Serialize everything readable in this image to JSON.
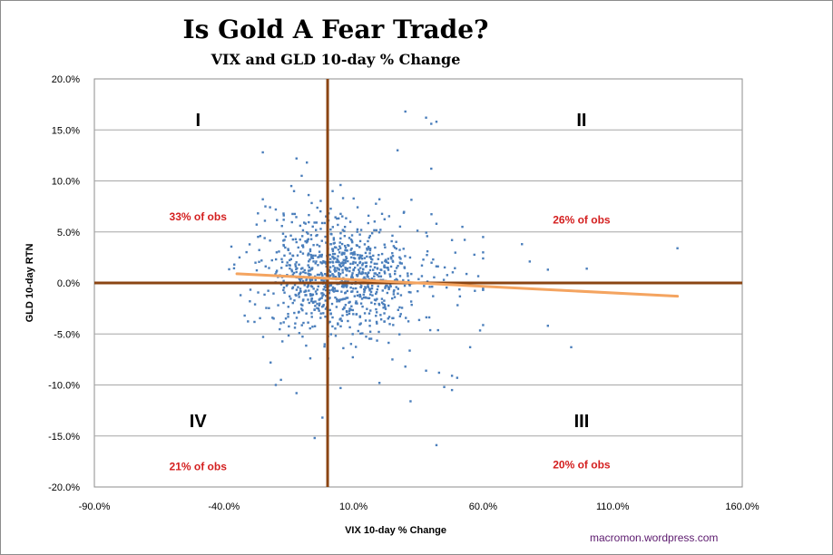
{
  "chart_data": {
    "type": "scatter",
    "title": "Is Gold A Fear Trade?",
    "subtitle": "VIX and GLD 10-day % Change",
    "xlabel": "VIX 10-day % Change",
    "ylabel": "GLD 10-day RTN",
    "xlim": [
      -90,
      160
    ],
    "ylim": [
      -20,
      20
    ],
    "x_ticks": [
      -90,
      -40,
      10,
      60,
      110,
      160
    ],
    "x_tick_labels": [
      "-90.0%",
      "-40.0%",
      "10.0%",
      "60.0%",
      "110.0%",
      "160.0%"
    ],
    "y_ticks": [
      20,
      15,
      10,
      5,
      0,
      -5,
      -10,
      -15,
      -20
    ],
    "y_tick_labels": [
      "20.0%",
      "15.0%",
      "10.0%",
      "5.0%",
      "0.0%",
      "-5.0%",
      "-10.0%",
      "-15.0%",
      "-20.0%"
    ],
    "gridlines": "horizontal",
    "quadrant_divider": {
      "x": 0,
      "y": 0
    },
    "quadrants": [
      {
        "label": "I",
        "share": "33% of obs",
        "x": -50,
        "y": 16,
        "share_x": -50,
        "share_y": 6.5
      },
      {
        "label": "II",
        "share": "26% of obs",
        "x": 98,
        "y": 16,
        "share_x": 98,
        "share_y": 6.2
      },
      {
        "label": "IV",
        "share": "21% of obs",
        "x": -50,
        "y": -13.5,
        "share_x": -50,
        "share_y": -18
      },
      {
        "label": "III",
        "share": "20% of obs",
        "x": 98,
        "y": -13.5,
        "share_x": 98,
        "share_y": -17.8
      }
    ],
    "trendline": {
      "x": [
        -35,
        135
      ],
      "y": [
        0.9,
        -1.3
      ],
      "color": "#f4a460"
    },
    "colors": {
      "points": "#4a7ebb",
      "axes": "#8b4513",
      "grid": "#a6a6a6",
      "border": "#8c8c8c",
      "annotation": "#d42020"
    },
    "outliers": [
      [
        30,
        16.8
      ],
      [
        38,
        16.2
      ],
      [
        42,
        15.8
      ],
      [
        40,
        15.6
      ],
      [
        27,
        13
      ],
      [
        -25,
        12.8
      ],
      [
        -12,
        12.2
      ],
      [
        0,
        11.6
      ],
      [
        40,
        11.2
      ],
      [
        -10,
        10.5
      ],
      [
        5,
        9.6
      ],
      [
        -25,
        8.2
      ],
      [
        -20,
        7.2
      ],
      [
        -17,
        6.8
      ],
      [
        -24,
        7.5
      ],
      [
        52,
        5.5
      ],
      [
        42,
        5.8
      ],
      [
        48,
        4.2
      ],
      [
        60,
        4.5
      ],
      [
        75,
        3.8
      ],
      [
        78,
        2.1
      ],
      [
        85,
        1.3
      ],
      [
        100,
        1.4
      ],
      [
        135,
        3.4
      ],
      [
        85,
        -4.2
      ],
      [
        94,
        -6.3
      ],
      [
        55,
        -6.3
      ],
      [
        48,
        -9.1
      ],
      [
        45,
        -10.2
      ],
      [
        43,
        -8.8
      ],
      [
        38,
        -8.6
      ],
      [
        48,
        -10.5
      ],
      [
        50,
        -9.3
      ],
      [
        32,
        -11.6
      ],
      [
        42,
        -15.9
      ],
      [
        -2,
        -13.2
      ],
      [
        -5,
        -15.2
      ],
      [
        -20,
        -10
      ],
      [
        -32,
        -3.2
      ],
      [
        -36,
        1.8
      ],
      [
        -34,
        2.5
      ],
      [
        -28,
        -2.1
      ],
      [
        -30,
        -1.8
      ],
      [
        -26,
        4.6
      ],
      [
        -22,
        -7.8
      ],
      [
        -18,
        -9.5
      ],
      [
        -12,
        -10.8
      ],
      [
        5,
        -10.3
      ],
      [
        20,
        -9.8
      ],
      [
        25,
        -7.5
      ],
      [
        30,
        -8.2
      ],
      [
        -8,
        11.8
      ],
      [
        -14,
        9.5
      ],
      [
        20,
        8.2
      ]
    ],
    "cloud": {
      "n": 1000,
      "seed": 7,
      "x_center": 3,
      "x_sd": 14,
      "y_center": 0.7,
      "y_sd": 2.8
    }
  },
  "watermark": "macromon.wordpress.com"
}
